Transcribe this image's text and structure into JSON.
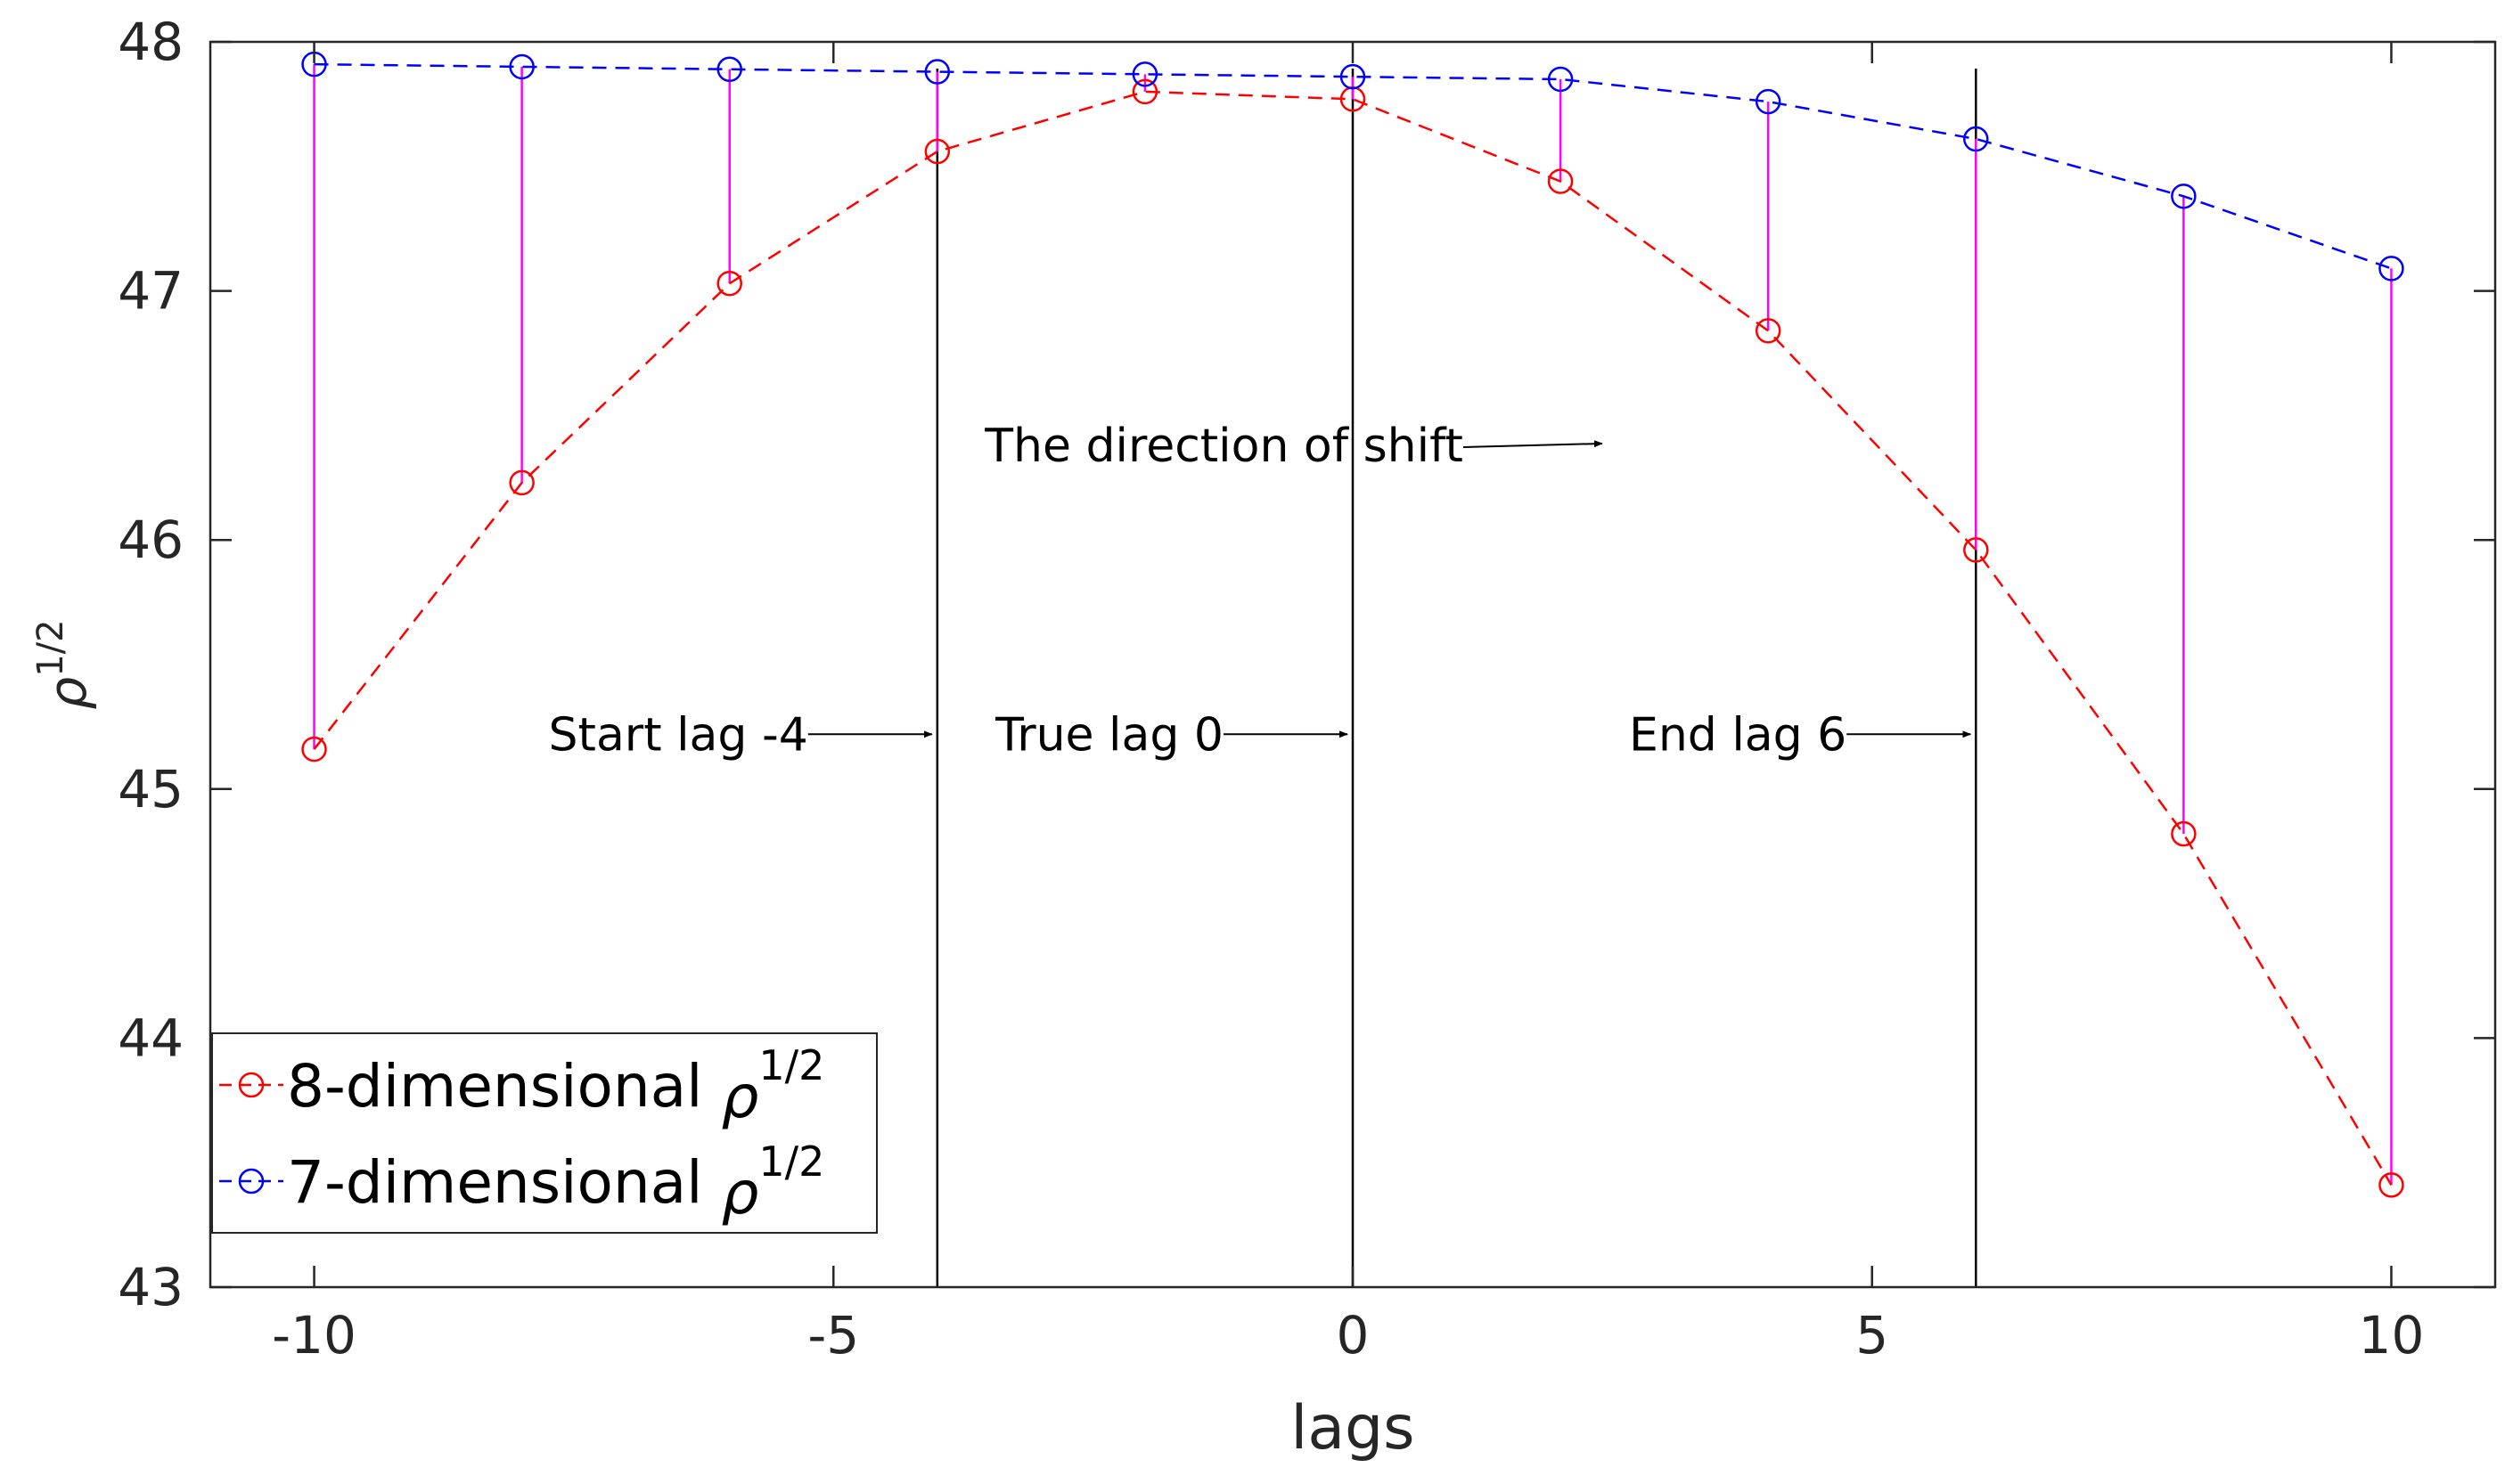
{
  "chart_data": {
    "type": "line",
    "xlabel": "lags",
    "ylabel": {
      "base": "ρ",
      "sup": "1/2"
    },
    "xlim": [
      -11,
      11
    ],
    "ylim": [
      43,
      48
    ],
    "xticks": [
      -10,
      -5,
      0,
      5,
      10
    ],
    "yticks": [
      43,
      44,
      45,
      46,
      47,
      48
    ],
    "grid": false,
    "legend_position": "bottom-left",
    "x": [
      -10,
      -8,
      -6,
      -4,
      -2,
      0,
      2,
      4,
      6,
      8,
      10
    ],
    "series": [
      {
        "name": "8-dimensional",
        "name_sup": "1/2",
        "name_symbol": "ρ",
        "color": "#ff0000",
        "marker": "circle",
        "linestyle": "dashed",
        "values": [
          45.16,
          46.23,
          47.03,
          47.56,
          47.8,
          47.77,
          47.44,
          46.84,
          45.96,
          44.82,
          43.41
        ]
      },
      {
        "name": "7-dimensional",
        "name_sup": "1/2",
        "name_symbol": "ρ",
        "color": "#0000ff",
        "marker": "circle",
        "linestyle": "dashed",
        "values": [
          47.91,
          47.9,
          47.89,
          47.88,
          47.87,
          47.86,
          47.85,
          47.76,
          47.61,
          47.38,
          47.09
        ]
      }
    ],
    "difference_stems": {
      "color": "#ff00ff"
    },
    "vertical_lines": [
      -4,
      0,
      6
    ],
    "annotations": [
      {
        "id": "start",
        "text": "Start lag -4",
        "x": -4,
        "y": 45.22
      },
      {
        "id": "true",
        "text": "True lag 0",
        "x": 0,
        "y": 45.22
      },
      {
        "id": "end",
        "text": "End lag 6",
        "x": 6,
        "y": 45.22
      },
      {
        "id": "direction",
        "text": "The direction of shift",
        "x": 2.35,
        "y": 46.38
      }
    ]
  }
}
